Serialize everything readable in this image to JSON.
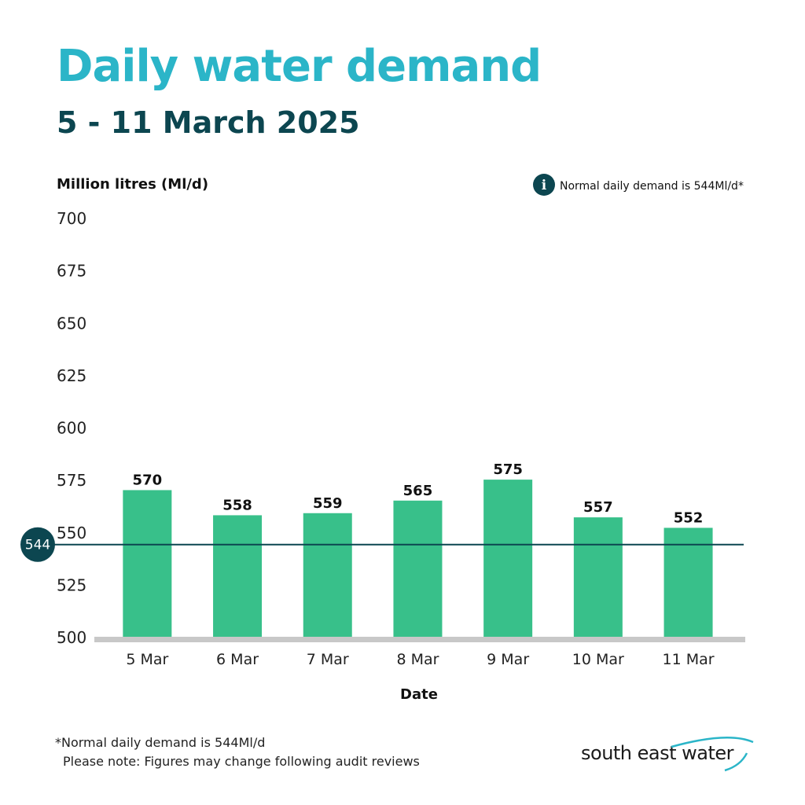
{
  "header": {
    "title": "Daily water demand",
    "subtitle": "5 - 11 March 2025"
  },
  "chart_data": {
    "type": "bar",
    "title": "Daily water demand",
    "subtitle": "5 - 11 March 2025",
    "ylabel": "Million litres (Ml/d)",
    "xlabel": "Date",
    "categories": [
      "5 Mar",
      "6 Mar",
      "7 Mar",
      "8 Mar",
      "9 Mar",
      "10 Mar",
      "11 Mar"
    ],
    "values": [
      570,
      558,
      559,
      565,
      575,
      557,
      552
    ],
    "ylim": [
      500,
      700
    ],
    "yticks": [
      500,
      525,
      550,
      575,
      600,
      625,
      650,
      675,
      700
    ],
    "grid": false,
    "bar_color": "#38c08a",
    "reference_line": {
      "value": 544,
      "label": "544",
      "color": "#0c4650",
      "legend_text": "Normal daily demand is 544Ml/d*",
      "legend_placement": "top-right"
    }
  },
  "footer": {
    "note_line1": "*Normal daily demand is 544Ml/d",
    "note_line2": "Please note: Figures may change following audit reviews"
  },
  "brand": {
    "logo_text": "south east water",
    "accent_color": "#2bb5c8",
    "dark_color": "#0c4650"
  }
}
